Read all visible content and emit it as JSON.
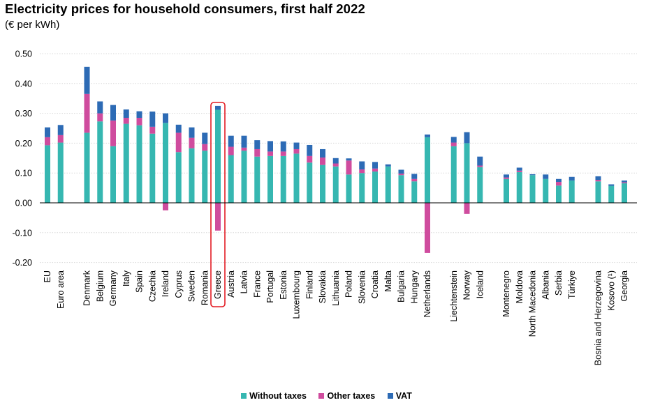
{
  "header": {
    "title": "Electricity prices for household consumers, first half 2022",
    "subtitle": "(€ per kWh)"
  },
  "colors": {
    "without_taxes": "#36b7b1",
    "other_taxes": "#cf4c9e",
    "vat": "#2d6bb5",
    "highlight": "#e31b23",
    "grid": "#d9d9d9",
    "axis": "#000000"
  },
  "legend": {
    "items": [
      {
        "label": "Without taxes",
        "color": "#36b7b1"
      },
      {
        "label": "Other taxes",
        "color": "#cf4c9e"
      },
      {
        "label": "VAT",
        "color": "#2d6bb5"
      }
    ]
  },
  "chart_data": {
    "type": "bar",
    "stacked": true,
    "title": "Electricity prices for household consumers, first half 2022",
    "ylabel": "€ per kWh",
    "ylim": [
      -0.2,
      0.5
    ],
    "yticks": [
      "0.50",
      "0.40",
      "0.30",
      "0.20",
      "0.10",
      "0.00",
      "-0.10",
      "-0.20"
    ],
    "ytick_values": [
      0.5,
      0.4,
      0.3,
      0.2,
      0.1,
      0.0,
      -0.1,
      -0.2
    ],
    "grid": true,
    "legend_position": "bottom",
    "highlighted_category": "Greece",
    "categories": [
      "EU",
      "Euro area",
      "Denmark",
      "Belgium",
      "Germany",
      "Italy",
      "Spain",
      "Czechia",
      "Ireland",
      "Cyprus",
      "Sweden",
      "Romania",
      "Greece",
      "Austria",
      "Latvia",
      "France",
      "Portugal",
      "Estonia",
      "Luxembourg",
      "Finland",
      "Slovakia",
      "Lithuania",
      "Poland",
      "Slovenia",
      "Croatia",
      "Malta",
      "Bulgaria",
      "Hungary",
      "Netherlands",
      "Liechtenstein",
      "Norway",
      "Iceland",
      "Montenegro",
      "Moldova",
      "North Macedonia",
      "Albania",
      "Serbia",
      "Türkiye",
      "Bosnia and Herzegovina",
      "Kosovo (¹)",
      "Georgia"
    ],
    "groups": [
      2,
      27,
      3,
      6,
      3
    ],
    "series": [
      {
        "name": "Without taxes",
        "values": [
          0.193,
          0.202,
          0.235,
          0.273,
          0.19,
          0.265,
          0.26,
          0.232,
          0.268,
          0.17,
          0.183,
          0.175,
          0.312,
          0.16,
          0.175,
          0.155,
          0.157,
          0.157,
          0.165,
          0.135,
          0.127,
          0.122,
          0.095,
          0.1,
          0.105,
          0.122,
          0.093,
          0.072,
          0.22,
          0.19,
          0.2,
          0.12,
          0.08,
          0.103,
          0.093,
          0.08,
          0.058,
          0.075,
          0.072,
          0.057,
          0.066
        ]
      },
      {
        "name": "Other taxes",
        "values": [
          0.027,
          0.025,
          0.13,
          0.027,
          0.086,
          0.02,
          0.025,
          0.023,
          -0.025,
          0.065,
          0.035,
          0.022,
          -0.093,
          0.028,
          0.01,
          0.025,
          0.015,
          0.015,
          0.015,
          0.022,
          0.025,
          0.01,
          0.047,
          0.012,
          0.01,
          0.0,
          0.005,
          0.008,
          -0.168,
          0.012,
          -0.037,
          0.005,
          0.005,
          0.005,
          0.0,
          0.0,
          0.012,
          0.0,
          0.005,
          0.0,
          0.003
        ]
      },
      {
        "name": "VAT",
        "values": [
          0.033,
          0.034,
          0.091,
          0.04,
          0.052,
          0.028,
          0.022,
          0.051,
          0.032,
          0.027,
          0.035,
          0.038,
          0.013,
          0.037,
          0.04,
          0.03,
          0.035,
          0.034,
          0.022,
          0.037,
          0.028,
          0.018,
          0.007,
          0.027,
          0.022,
          0.007,
          0.013,
          0.017,
          0.009,
          0.019,
          0.037,
          0.03,
          0.01,
          0.01,
          0.003,
          0.015,
          0.01,
          0.012,
          0.012,
          0.005,
          0.006
        ]
      }
    ]
  }
}
